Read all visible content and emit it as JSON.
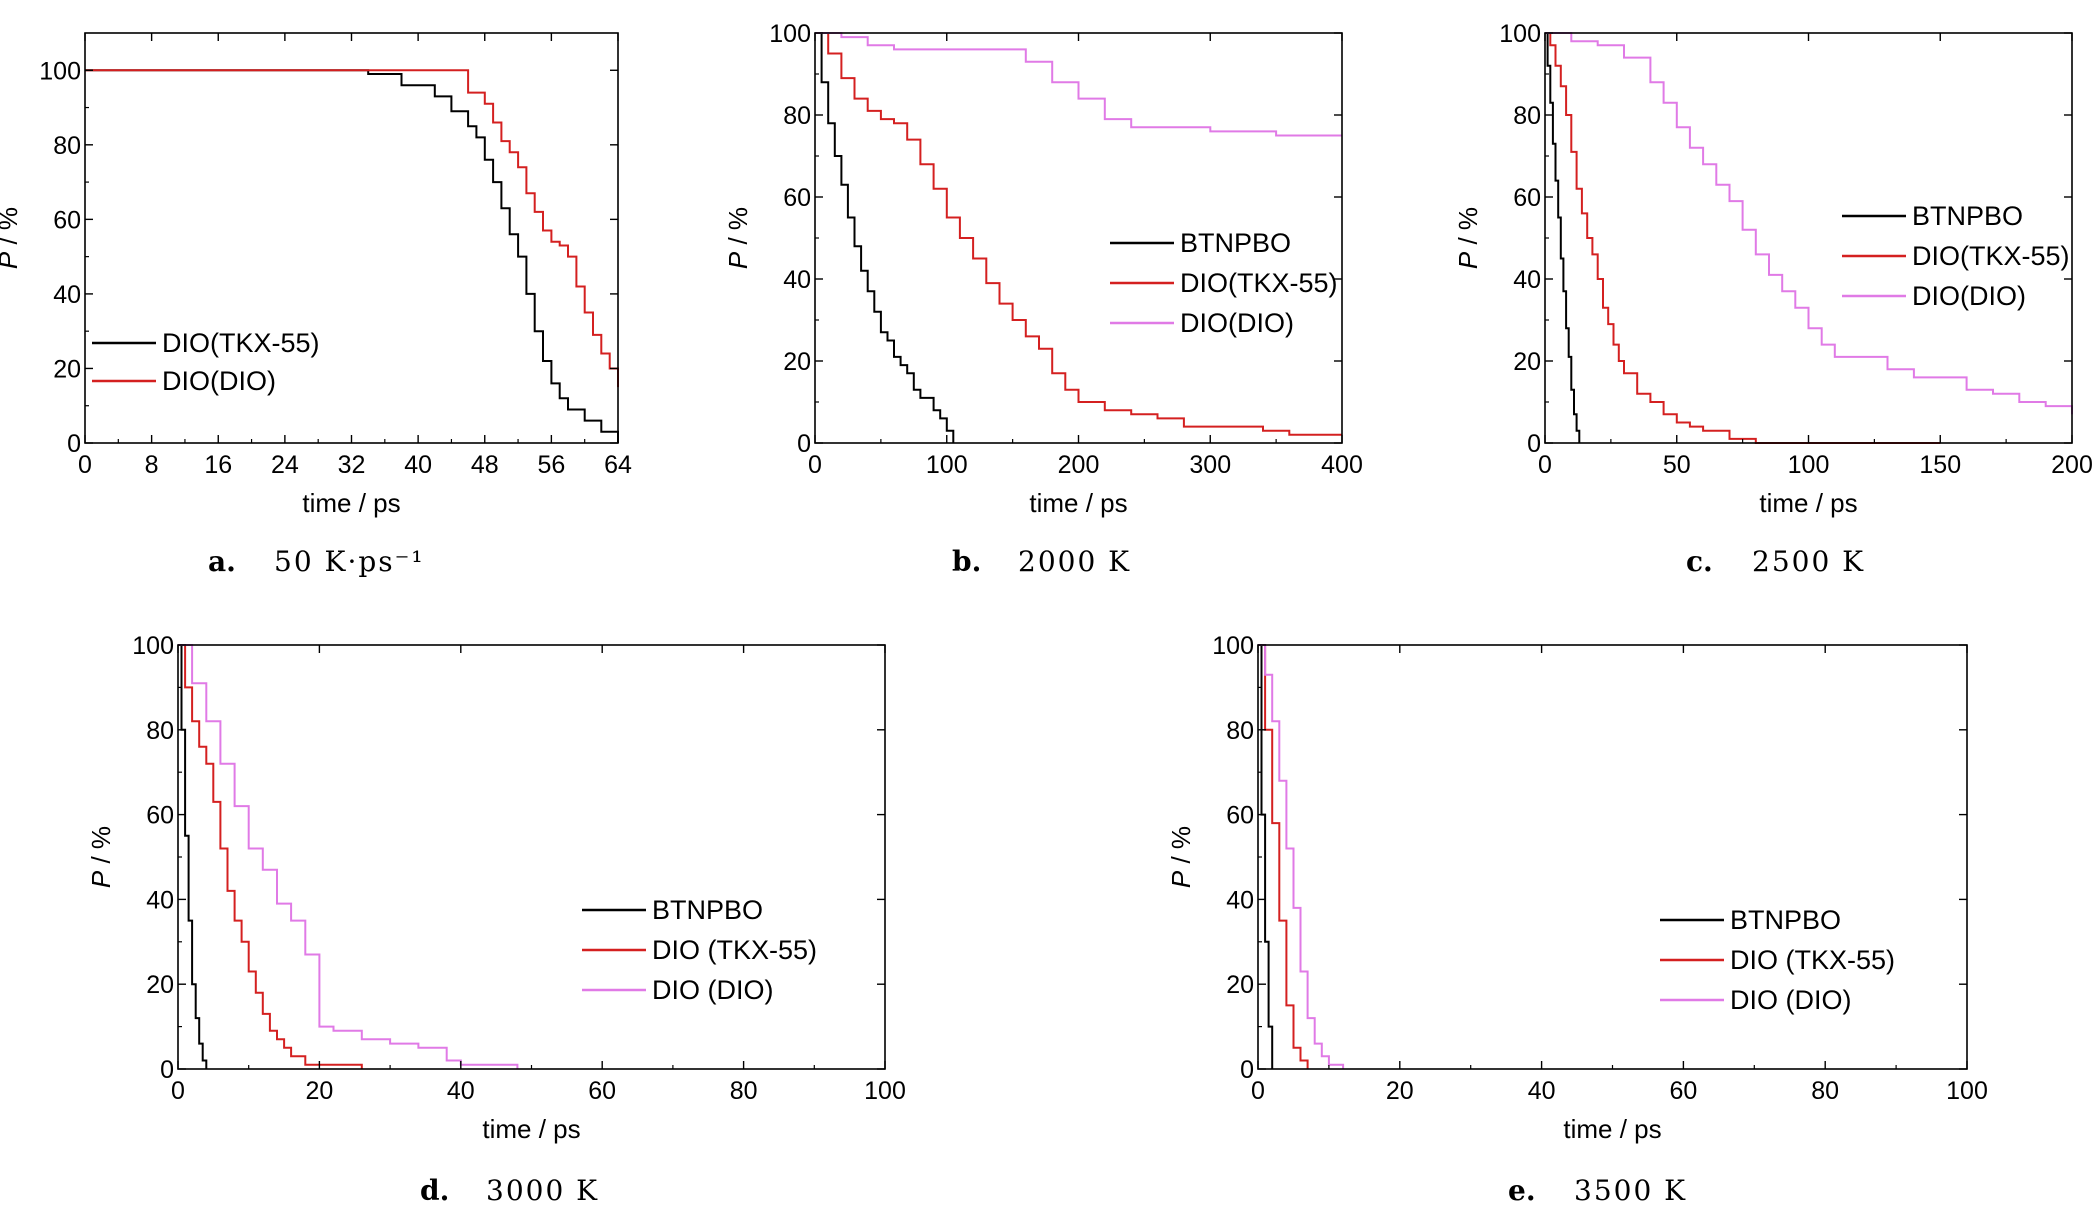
{
  "chart_data": [
    {
      "type": "line",
      "panel": "a.",
      "caption": "50 K·ps⁻¹",
      "xlabel": "time / ps",
      "ylabel": "P / %",
      "xlim": [
        0,
        64
      ],
      "ylim": [
        0,
        110
      ],
      "xticks": [
        0,
        8,
        16,
        24,
        32,
        40,
        48,
        56,
        64
      ],
      "yticks": [
        0,
        20,
        40,
        60,
        80,
        100
      ],
      "legend_position": "bottom-left",
      "series": [
        {
          "name": "DIO(TKX-55)",
          "color": "#000000",
          "x": [
            0,
            30,
            34,
            38,
            42,
            44,
            46,
            47,
            48,
            49,
            50,
            51,
            52,
            53,
            54,
            55,
            56,
            57,
            58,
            60,
            62,
            64
          ],
          "y": [
            100,
            100,
            99,
            96,
            93,
            89,
            85,
            82,
            76,
            70,
            63,
            56,
            50,
            40,
            30,
            22,
            16,
            12,
            9,
            6,
            3,
            0
          ]
        },
        {
          "name": "DIO(DIO)",
          "color": "#d42020",
          "x": [
            0,
            44,
            46,
            48,
            49,
            50,
            51,
            52,
            53,
            54,
            55,
            56,
            57,
            58,
            59,
            60,
            61,
            62,
            63,
            64
          ],
          "y": [
            100,
            100,
            94,
            91,
            86,
            81,
            78,
            74,
            67,
            62,
            57,
            54,
            53,
            50,
            42,
            35,
            29,
            24,
            20,
            15
          ]
        }
      ]
    },
    {
      "type": "line",
      "panel": "b.",
      "caption": "2000 K",
      "xlabel": "time / ps",
      "ylabel": "P / %",
      "xlim": [
        0,
        400
      ],
      "ylim": [
        0,
        100
      ],
      "xticks": [
        0,
        100,
        200,
        300,
        400
      ],
      "yticks": [
        0,
        20,
        40,
        60,
        80,
        100
      ],
      "legend_position": "middle-right",
      "series": [
        {
          "name": "BTNPBO",
          "color": "#000000",
          "x": [
            0,
            5,
            10,
            15,
            20,
            25,
            30,
            35,
            40,
            45,
            50,
            55,
            60,
            65,
            70,
            75,
            80,
            85,
            90,
            95,
            100,
            105
          ],
          "y": [
            100,
            88,
            78,
            70,
            63,
            55,
            48,
            42,
            37,
            32,
            27,
            25,
            21,
            19,
            17,
            13,
            11,
            11,
            8,
            6,
            3,
            0
          ]
        },
        {
          "name": "DIO(TKX-55)",
          "color": "#d42020",
          "x": [
            0,
            10,
            20,
            30,
            40,
            50,
            60,
            70,
            80,
            90,
            100,
            110,
            120,
            130,
            140,
            150,
            160,
            170,
            180,
            190,
            200,
            220,
            240,
            260,
            280,
            300,
            340,
            360,
            400
          ],
          "y": [
            100,
            95,
            89,
            84,
            81,
            79,
            78,
            74,
            68,
            62,
            55,
            50,
            45,
            39,
            34,
            30,
            26,
            23,
            17,
            13,
            10,
            8,
            7,
            6,
            4,
            4,
            3,
            2,
            2
          ]
        },
        {
          "name": "DIO(DIO)",
          "color": "#e07ae6",
          "x": [
            0,
            20,
            40,
            60,
            100,
            150,
            160,
            180,
            200,
            220,
            240,
            300,
            350,
            400
          ],
          "y": [
            100,
            99,
            97,
            96,
            96,
            96,
            93,
            88,
            84,
            79,
            77,
            76,
            75,
            75
          ]
        }
      ]
    },
    {
      "type": "line",
      "panel": "c.",
      "caption": "2500 K",
      "xlabel": "time / ps",
      "ylabel": "P / %",
      "xlim": [
        0,
        200
      ],
      "ylim": [
        0,
        100
      ],
      "xticks": [
        0,
        50,
        100,
        150,
        200
      ],
      "yticks": [
        0,
        20,
        40,
        60,
        80,
        100
      ],
      "legend_position": "top-right",
      "series": [
        {
          "name": "BTNPBO",
          "color": "#000000",
          "x": [
            0,
            1,
            2,
            3,
            4,
            5,
            6,
            7,
            8,
            9,
            10,
            11,
            12,
            13
          ],
          "y": [
            100,
            92,
            83,
            73,
            64,
            55,
            45,
            37,
            28,
            21,
            13,
            7,
            3,
            0
          ]
        },
        {
          "name": "DIO(TKX-55)",
          "color": "#d42020",
          "x": [
            0,
            2,
            4,
            6,
            8,
            10,
            12,
            14,
            16,
            18,
            20,
            22,
            24,
            26,
            28,
            30,
            35,
            40,
            45,
            50,
            55,
            60,
            70,
            80,
            100,
            120,
            150
          ],
          "y": [
            100,
            97,
            92,
            87,
            80,
            71,
            62,
            56,
            50,
            46,
            40,
            33,
            29,
            24,
            20,
            17,
            12,
            10,
            7,
            5,
            4,
            3,
            1,
            0,
            0,
            0,
            0
          ]
        },
        {
          "name": "DIO(DIO)",
          "color": "#e07ae6",
          "x": [
            0,
            10,
            20,
            30,
            40,
            45,
            50,
            55,
            60,
            65,
            70,
            75,
            80,
            85,
            90,
            95,
            100,
            105,
            110,
            120,
            130,
            140,
            150,
            160,
            170,
            180,
            190,
            200
          ],
          "y": [
            100,
            98,
            97,
            94,
            88,
            83,
            77,
            72,
            68,
            63,
            59,
            52,
            46,
            41,
            37,
            33,
            28,
            24,
            21,
            21,
            18,
            16,
            16,
            13,
            12,
            10,
            9,
            7
          ]
        }
      ]
    },
    {
      "type": "line",
      "panel": "d.",
      "caption": "3000 K",
      "xlabel": "time / ps",
      "ylabel": "P / %",
      "xlim": [
        0,
        100
      ],
      "ylim": [
        0,
        100
      ],
      "xticks": [
        0,
        20,
        40,
        60,
        80,
        100
      ],
      "yticks": [
        0,
        20,
        40,
        60,
        80,
        100
      ],
      "legend_position": "middle-right",
      "series": [
        {
          "name": "BTNPBO",
          "color": "#000000",
          "x": [
            0,
            0.5,
            1,
            1.5,
            2,
            2.5,
            3,
            3.5,
            4
          ],
          "y": [
            100,
            80,
            55,
            35,
            20,
            12,
            6,
            2,
            0
          ]
        },
        {
          "name": "DIO (TKX-55)",
          "color": "#d42020",
          "x": [
            0,
            1,
            2,
            3,
            4,
            5,
            6,
            7,
            8,
            9,
            10,
            11,
            12,
            13,
            14,
            15,
            16,
            18,
            20,
            26
          ],
          "y": [
            100,
            90,
            82,
            76,
            72,
            63,
            52,
            42,
            35,
            30,
            23,
            18,
            13,
            9,
            7,
            5,
            3,
            1,
            1,
            0
          ]
        },
        {
          "name": "DIO (DIO)",
          "color": "#e07ae6",
          "x": [
            0,
            2,
            4,
            6,
            8,
            10,
            12,
            14,
            16,
            18,
            20,
            22,
            24,
            26,
            30,
            34,
            38,
            40,
            44,
            48
          ],
          "y": [
            100,
            91,
            82,
            72,
            62,
            52,
            47,
            39,
            35,
            27,
            10,
            9,
            9,
            7,
            6,
            5,
            2,
            1,
            1,
            0
          ]
        }
      ]
    },
    {
      "type": "line",
      "panel": "e.",
      "caption": "3500 K",
      "xlabel": "time / ps",
      "ylabel": "P / %",
      "xlim": [
        0,
        100
      ],
      "ylim": [
        0,
        100
      ],
      "xticks": [
        0,
        20,
        40,
        60,
        80,
        100
      ],
      "yticks": [
        0,
        20,
        40,
        60,
        80,
        100
      ],
      "legend_position": "middle-right",
      "series": [
        {
          "name": "BTNPBO",
          "color": "#000000",
          "x": [
            0,
            0.5,
            1,
            1.5,
            2
          ],
          "y": [
            100,
            60,
            30,
            10,
            0
          ]
        },
        {
          "name": "DIO (TKX-55)",
          "color": "#d42020",
          "x": [
            0,
            1,
            2,
            3,
            4,
            5,
            6,
            7
          ],
          "y": [
            100,
            80,
            58,
            35,
            15,
            5,
            2,
            0
          ]
        },
        {
          "name": "DIO (DIO)",
          "color": "#e07ae6",
          "x": [
            0,
            1,
            2,
            3,
            4,
            5,
            6,
            7,
            8,
            9,
            10,
            12
          ],
          "y": [
            100,
            93,
            82,
            68,
            52,
            38,
            23,
            12,
            6,
            3,
            1,
            0
          ]
        }
      ]
    }
  ]
}
